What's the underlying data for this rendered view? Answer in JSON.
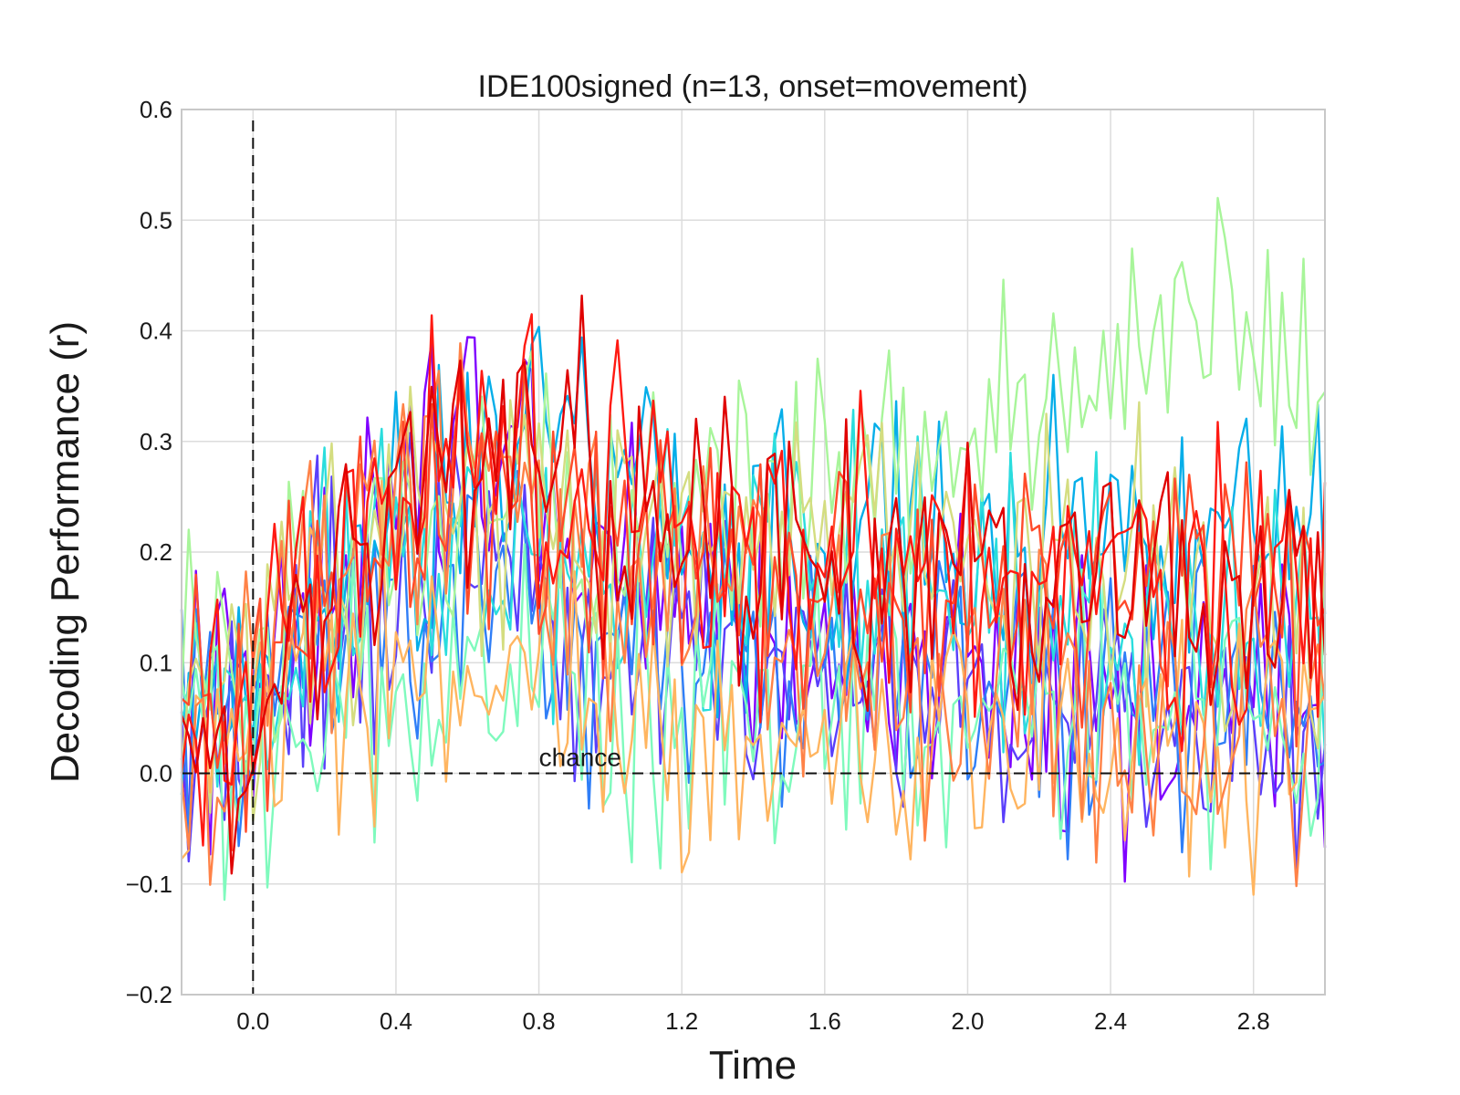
{
  "chart_data": {
    "type": "line",
    "title": "IDE100signed (n=13, onset=movement)",
    "xlabel": "Time",
    "ylabel": "Decoding Performance (r)",
    "xlim": [
      -0.2,
      3.0
    ],
    "ylim": [
      -0.2,
      0.6
    ],
    "x_ticks": [
      "0.0",
      "0.4",
      "0.8",
      "1.2",
      "1.6",
      "2.0",
      "2.4",
      "2.8"
    ],
    "y_ticks": [
      "−0.2",
      "−0.1",
      "0.0",
      "0.1",
      "0.2",
      "0.3",
      "0.4",
      "0.5",
      "0.6"
    ],
    "grid": true,
    "legend": "none",
    "x_step": 0.02,
    "onset_marker_x": 0.0,
    "chance_level": 0.0,
    "chance_label": "chance",
    "n_series": 13,
    "series": [
      {
        "color": "#7f00ff",
        "profile": [
          [
            -0.2,
            0.05
          ],
          [
            0.0,
            0.05
          ],
          [
            0.1,
            0.17
          ],
          [
            0.35,
            0.2
          ],
          [
            0.45,
            0.3
          ],
          [
            0.55,
            0.3
          ],
          [
            0.8,
            0.24
          ],
          [
            1.0,
            0.17
          ],
          [
            1.4,
            0.12
          ],
          [
            2.0,
            0.1
          ],
          [
            2.4,
            0.08
          ],
          [
            3.0,
            0.06
          ]
        ]
      },
      {
        "color": "#5a3ffb",
        "profile": [
          [
            -0.2,
            0.02
          ],
          [
            0.0,
            0.02
          ],
          [
            0.1,
            0.12
          ],
          [
            0.35,
            0.15
          ],
          [
            0.45,
            0.2
          ],
          [
            0.55,
            0.22
          ],
          [
            0.8,
            0.15
          ],
          [
            1.0,
            0.12
          ],
          [
            1.4,
            0.09
          ],
          [
            2.0,
            0.06
          ],
          [
            2.4,
            0.06
          ],
          [
            3.0,
            0.05
          ]
        ]
      },
      {
        "color": "#2f7ef7",
        "profile": [
          [
            -0.2,
            0.04
          ],
          [
            0.0,
            0.03
          ],
          [
            0.1,
            0.1
          ],
          [
            0.35,
            0.14
          ],
          [
            0.45,
            0.17
          ],
          [
            0.55,
            0.17
          ],
          [
            0.8,
            0.14
          ],
          [
            1.0,
            0.11
          ],
          [
            1.4,
            0.1
          ],
          [
            2.0,
            0.08
          ],
          [
            2.4,
            0.07
          ],
          [
            3.0,
            0.06
          ]
        ]
      },
      {
        "color": "#06aee9",
        "profile": [
          [
            -0.2,
            0.06
          ],
          [
            0.0,
            0.06
          ],
          [
            0.1,
            0.14
          ],
          [
            0.35,
            0.2
          ],
          [
            0.45,
            0.27
          ],
          [
            0.55,
            0.29
          ],
          [
            0.8,
            0.26
          ],
          [
            1.0,
            0.24
          ],
          [
            1.4,
            0.22
          ],
          [
            2.0,
            0.2
          ],
          [
            2.4,
            0.23
          ],
          [
            3.0,
            0.22
          ]
        ]
      },
      {
        "color": "#2adddd",
        "profile": [
          [
            -0.2,
            0.05
          ],
          [
            0.0,
            0.04
          ],
          [
            0.1,
            0.1
          ],
          [
            0.35,
            0.16
          ],
          [
            0.45,
            0.2
          ],
          [
            0.55,
            0.21
          ],
          [
            0.8,
            0.2
          ],
          [
            1.0,
            0.18
          ],
          [
            1.4,
            0.2
          ],
          [
            2.0,
            0.17
          ],
          [
            2.4,
            0.14
          ],
          [
            3.0,
            0.12
          ]
        ]
      },
      {
        "color": "#7ffabd",
        "profile": [
          [
            -0.2,
            0.02
          ],
          [
            0.0,
            0.01
          ],
          [
            0.1,
            0.06
          ],
          [
            0.35,
            0.04
          ],
          [
            0.45,
            0.05
          ],
          [
            0.55,
            0.06
          ],
          [
            0.8,
            0.08
          ],
          [
            1.0,
            0.07
          ],
          [
            1.4,
            0.06
          ],
          [
            2.0,
            0.05
          ],
          [
            2.4,
            0.06
          ],
          [
            3.0,
            0.05
          ]
        ]
      },
      {
        "color": "#a8f59a",
        "profile": [
          [
            -0.2,
            0.06
          ],
          [
            0.0,
            0.05
          ],
          [
            0.1,
            0.12
          ],
          [
            0.35,
            0.17
          ],
          [
            0.45,
            0.22
          ],
          [
            0.55,
            0.25
          ],
          [
            0.8,
            0.25
          ],
          [
            1.0,
            0.23
          ],
          [
            1.4,
            0.24
          ],
          [
            2.0,
            0.3
          ],
          [
            2.4,
            0.35
          ],
          [
            2.6,
            0.39
          ],
          [
            3.0,
            0.37
          ]
        ]
      },
      {
        "color": "#d4dd80",
        "profile": [
          [
            -0.2,
            0.05
          ],
          [
            0.0,
            0.05
          ],
          [
            0.1,
            0.12
          ],
          [
            0.35,
            0.2
          ],
          [
            0.45,
            0.25
          ],
          [
            0.55,
            0.26
          ],
          [
            0.8,
            0.24
          ],
          [
            1.0,
            0.22
          ],
          [
            1.4,
            0.21
          ],
          [
            2.0,
            0.2
          ],
          [
            2.4,
            0.18
          ],
          [
            3.0,
            0.15
          ]
        ]
      },
      {
        "color": "#ffb560",
        "profile": [
          [
            -0.2,
            0.03
          ],
          [
            0.0,
            0.02
          ],
          [
            0.1,
            0.08
          ],
          [
            0.35,
            0.1
          ],
          [
            0.45,
            0.08
          ],
          [
            0.55,
            0.07
          ],
          [
            0.8,
            0.05
          ],
          [
            1.0,
            0.05
          ],
          [
            1.4,
            0.04
          ],
          [
            2.0,
            0.03
          ],
          [
            2.4,
            0.03
          ],
          [
            3.0,
            0.02
          ]
        ]
      },
      {
        "color": "#ff8247",
        "profile": [
          [
            -0.2,
            0.03
          ],
          [
            0.0,
            0.03
          ],
          [
            0.1,
            0.15
          ],
          [
            0.35,
            0.25
          ],
          [
            0.45,
            0.3
          ],
          [
            0.55,
            0.3
          ],
          [
            0.8,
            0.24
          ],
          [
            1.0,
            0.17
          ],
          [
            1.4,
            0.12
          ],
          [
            2.0,
            0.08
          ],
          [
            2.4,
            0.05
          ],
          [
            3.0,
            0.04
          ]
        ]
      },
      {
        "color": "#ff4b2a",
        "profile": [
          [
            -0.2,
            0.03
          ],
          [
            0.0,
            0.03
          ],
          [
            0.1,
            0.14
          ],
          [
            0.35,
            0.2
          ],
          [
            0.45,
            0.25
          ],
          [
            0.55,
            0.27
          ],
          [
            0.8,
            0.23
          ],
          [
            1.0,
            0.2
          ],
          [
            1.4,
            0.18
          ],
          [
            2.0,
            0.17
          ],
          [
            2.4,
            0.16
          ],
          [
            3.0,
            0.15
          ]
        ]
      },
      {
        "color": "#ff1a12",
        "profile": [
          [
            -0.2,
            0.02
          ],
          [
            0.0,
            0.03
          ],
          [
            0.1,
            0.12
          ],
          [
            0.35,
            0.22
          ],
          [
            0.45,
            0.28
          ],
          [
            0.55,
            0.3
          ],
          [
            0.8,
            0.27
          ],
          [
            1.0,
            0.24
          ],
          [
            1.4,
            0.22
          ],
          [
            2.0,
            0.2
          ],
          [
            2.4,
            0.18
          ],
          [
            3.0,
            0.16
          ]
        ]
      },
      {
        "color": "#e00000",
        "profile": [
          [
            -0.2,
            0.0
          ],
          [
            0.0,
            0.02
          ],
          [
            0.1,
            0.12
          ],
          [
            0.35,
            0.24
          ],
          [
            0.45,
            0.3
          ],
          [
            0.55,
            0.31
          ],
          [
            0.8,
            0.28
          ],
          [
            1.0,
            0.25
          ],
          [
            1.4,
            0.22
          ],
          [
            2.0,
            0.19
          ],
          [
            2.4,
            0.17
          ],
          [
            3.0,
            0.16
          ]
        ]
      }
    ]
  }
}
